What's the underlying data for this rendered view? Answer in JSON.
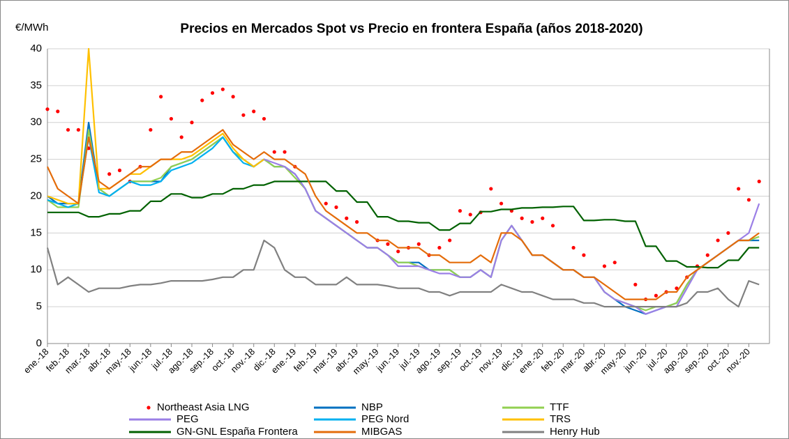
{
  "chart_data": {
    "type": "line",
    "title": "Precios en Mercados Spot vs Precio en frontera España (años 2018-2020)",
    "y_label": "€/MWh",
    "categories": [
      "ene.-18",
      null,
      "feb.-18",
      null,
      "mar.-18",
      null,
      "abr.-18",
      null,
      "may.-18",
      null,
      "jun.-18",
      null,
      "jul.-18",
      null,
      "ago.-18",
      null,
      "sep.-18",
      null,
      "oct.-18",
      null,
      "nov.-18",
      null,
      "dic.-18",
      null,
      "ene.-19",
      null,
      "feb.-19",
      null,
      "mar.-19",
      null,
      "abr.-19",
      null,
      "may.-19",
      null,
      "jun.-19",
      null,
      "jul.-19",
      null,
      "ago.-19",
      null,
      "sep.-19",
      null,
      "oct.-19",
      null,
      "nov.-19",
      null,
      "dic.-19",
      null,
      "ene.-20",
      null,
      "feb.-20",
      null,
      "mar.-20",
      null,
      "abr.-20",
      null,
      "may.-20",
      null,
      "jun.-20",
      null,
      "jul.-20",
      null,
      "ago.-20",
      null,
      "sep.-20",
      null,
      "oct.-20",
      null,
      "nov.-20",
      null
    ],
    "ylim": [
      0,
      40
    ],
    "yticks": [
      0,
      5,
      10,
      15,
      20,
      25,
      30,
      35,
      40
    ],
    "grid": true,
    "series": [
      {
        "name": "Northeast Asia LNG",
        "color": "#ff0000",
        "style": "markers",
        "values": [
          31.8,
          31.5,
          29,
          29,
          26.5,
          null,
          23,
          23.5,
          22,
          24,
          29,
          33.5,
          30.5,
          28,
          30,
          33,
          34,
          34.5,
          33.5,
          31,
          31.5,
          30.5,
          26,
          26,
          24,
          null,
          null,
          19,
          18.5,
          17,
          16.5,
          null,
          14,
          13.5,
          12.5,
          13,
          13.5,
          12,
          13,
          14,
          18,
          17.5,
          17.8,
          21,
          19,
          18,
          17,
          16.5,
          17,
          16,
          null,
          13,
          12,
          null,
          10.5,
          11,
          null,
          8,
          6,
          6.5,
          7,
          7.5,
          9,
          10.5,
          12,
          14,
          15,
          21,
          19.5,
          22
        ]
      },
      {
        "name": "NBP",
        "color": "#0070c0",
        "values": [
          20,
          19,
          19,
          19,
          30,
          21,
          20,
          21,
          22,
          22,
          22,
          22,
          24,
          24.5,
          25,
          26,
          27,
          28,
          26,
          25,
          24,
          25,
          24,
          24,
          23,
          21,
          18,
          17,
          16,
          15,
          14,
          13,
          13,
          12,
          11,
          11,
          11,
          10,
          10,
          10,
          9,
          9,
          10,
          9,
          14,
          16,
          14,
          12,
          12,
          11,
          10,
          10,
          9,
          9,
          7,
          6,
          5,
          4.5,
          4,
          4.5,
          5,
          5.5,
          8,
          10,
          11,
          12,
          13,
          14,
          14,
          14
        ]
      },
      {
        "name": "TTF",
        "color": "#92d050",
        "values": [
          19.5,
          18.5,
          18.5,
          18.5,
          29,
          21,
          20,
          21,
          22,
          22,
          22,
          22.5,
          24,
          24.5,
          25,
          26,
          27,
          28,
          26,
          25,
          24,
          25,
          24,
          24,
          22.5,
          21,
          18,
          17,
          16,
          15,
          14,
          13,
          13,
          12,
          11,
          11,
          10.5,
          10,
          10,
          10,
          9,
          9,
          10,
          9,
          14,
          16,
          14,
          12,
          12,
          11,
          10,
          10,
          9,
          9,
          7,
          6,
          5.5,
          5,
          4.5,
          5,
          5,
          5.5,
          8,
          10,
          11,
          12,
          13,
          14,
          14,
          14.5
        ]
      },
      {
        "name": "PEG",
        "color": "#9b7fe6",
        "values": [
          null,
          null,
          null,
          null,
          null,
          null,
          null,
          null,
          null,
          null,
          null,
          null,
          null,
          null,
          null,
          null,
          null,
          null,
          null,
          null,
          24,
          25,
          24.5,
          24,
          23,
          21,
          18,
          17,
          16,
          15,
          14,
          13,
          13,
          12,
          10.5,
          10.5,
          10.5,
          10,
          9.5,
          9.5,
          9,
          9,
          10,
          9,
          14,
          16,
          14,
          12,
          12,
          11,
          10,
          10,
          9,
          9,
          7,
          6,
          5.5,
          5,
          4,
          4.5,
          5,
          5,
          7.5,
          10,
          11,
          12,
          13,
          14,
          15,
          19
        ]
      },
      {
        "name": "PEG Nord",
        "color": "#00b0f0",
        "values": [
          19.5,
          19,
          18.5,
          19,
          28,
          20.5,
          20,
          21,
          22,
          21.5,
          21.5,
          22,
          23.5,
          24,
          24.5,
          25.5,
          26.5,
          28,
          26,
          24.5,
          24,
          25,
          null,
          null,
          null,
          null,
          null,
          null,
          null,
          null,
          null,
          null,
          null,
          null,
          null,
          null,
          null,
          null,
          null,
          null,
          null,
          null,
          null,
          null,
          null,
          null,
          null,
          null,
          null,
          null,
          null,
          null,
          null,
          null,
          null,
          null,
          null,
          null,
          null,
          null,
          null,
          null,
          null,
          null,
          null,
          null,
          null,
          null,
          null,
          null
        ]
      },
      {
        "name": "TRS",
        "color": "#ffc000",
        "values": [
          20,
          19.5,
          19,
          19,
          40,
          21,
          21,
          22,
          23,
          23,
          24,
          25,
          25,
          25,
          25.5,
          26.5,
          27.5,
          28.5,
          26.5,
          25,
          24,
          25,
          null,
          null,
          null,
          null,
          null,
          null,
          null,
          null,
          null,
          null,
          null,
          null,
          null,
          null,
          null,
          null,
          null,
          null,
          null,
          null,
          null,
          null,
          null,
          null,
          null,
          null,
          null,
          null,
          null,
          null,
          null,
          null,
          null,
          null,
          null,
          null,
          null,
          null,
          null,
          null,
          null,
          null,
          null,
          null,
          null,
          null,
          null,
          null
        ]
      },
      {
        "name": "GN-GNL España Frontera",
        "color": "#006100",
        "values": [
          17.8,
          17.8,
          17.8,
          17.8,
          17.2,
          17.2,
          17.6,
          17.6,
          18,
          18,
          19.3,
          19.3,
          20.3,
          20.3,
          19.8,
          19.8,
          20.3,
          20.3,
          21,
          21,
          21.5,
          21.5,
          22,
          22,
          22,
          22,
          22,
          22,
          20.7,
          20.7,
          19.2,
          19.2,
          17.2,
          17.2,
          16.6,
          16.6,
          16.4,
          16.4,
          15.4,
          15.4,
          16.3,
          16.3,
          17.9,
          17.9,
          18.2,
          18.2,
          18.4,
          18.4,
          18.5,
          18.5,
          18.6,
          18.6,
          16.7,
          16.7,
          16.8,
          16.8,
          16.6,
          16.6,
          13.2,
          13.2,
          11.2,
          11.2,
          10.4,
          10.4,
          10.3,
          10.3,
          11.3,
          11.3,
          13,
          13
        ]
      },
      {
        "name": "MIBGAS",
        "color": "#e46c0a",
        "values": [
          24,
          21,
          20,
          19,
          28,
          22,
          21,
          22,
          23,
          24,
          24,
          25,
          25,
          26,
          26,
          27,
          28,
          29,
          27,
          26,
          25,
          26,
          25,
          25,
          24,
          23,
          20,
          18,
          17,
          16,
          15,
          15,
          14,
          14,
          13,
          13,
          13,
          12,
          12,
          11,
          11,
          11,
          12,
          11,
          15,
          15,
          14,
          12,
          12,
          11,
          10,
          10,
          9,
          9,
          8,
          7,
          6,
          6,
          6,
          6,
          7,
          7,
          9,
          10,
          11,
          12,
          13,
          14,
          14,
          15
        ]
      },
      {
        "name": "Henry Hub",
        "color": "#808080",
        "values": [
          13,
          8,
          9,
          8,
          7,
          7.5,
          7.5,
          7.5,
          7.8,
          8,
          8,
          8.2,
          8.5,
          8.5,
          8.5,
          8.5,
          8.7,
          9,
          9,
          10,
          10,
          14,
          13,
          10,
          9,
          9,
          8,
          8,
          8,
          9,
          8,
          8,
          8,
          7.8,
          7.5,
          7.5,
          7.5,
          7,
          7,
          6.5,
          7,
          7,
          7,
          7,
          8,
          7.5,
          7,
          7,
          6.5,
          6,
          6,
          6,
          5.5,
          5.5,
          5,
          5,
          5,
          5,
          5,
          5,
          5,
          5,
          5.5,
          7,
          7,
          7.5,
          6,
          5,
          8.5,
          8
        ]
      }
    ]
  }
}
